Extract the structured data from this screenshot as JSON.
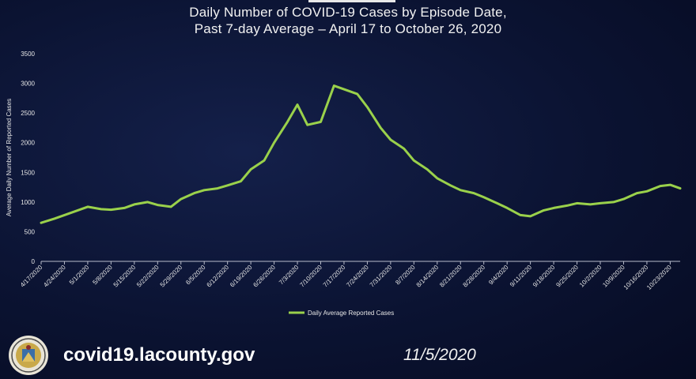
{
  "chart_data": {
    "type": "line",
    "title": "Daily Number of COVID-19 Cases by Episode Date,",
    "subtitle": "Past 7-day Average – April 17 to October 26, 2020",
    "ylabel": "Average Daily Number of Reported Cases",
    "xlabel": "",
    "ylim": [
      0,
      3500
    ],
    "yticks": [
      "0",
      "500",
      "1000",
      "1500",
      "2000",
      "2500",
      "3000",
      "3500"
    ],
    "grid": false,
    "legend": "bottom",
    "xticks": [
      "4/17/2020",
      "4/24/2020",
      "5/1/2020",
      "5/8/2020",
      "5/15/2020",
      "5/22/2020",
      "5/29/2020",
      "6/5/2020",
      "6/12/2020",
      "6/19/2020",
      "6/26/2020",
      "7/3/2020",
      "7/10/2020",
      "7/17/2020",
      "7/24/2020",
      "7/31/2020",
      "8/7/2020",
      "8/14/2020",
      "8/21/2020",
      "8/28/2020",
      "9/4/2020",
      "9/11/2020",
      "9/18/2020",
      "9/25/2020",
      "10/2/2020",
      "10/9/2020",
      "10/16/2020",
      "10/23/2020"
    ],
    "x": [
      "4/17/2020",
      "4/21/2020",
      "4/24/2020",
      "4/28/2020",
      "5/1/2020",
      "5/5/2020",
      "5/8/2020",
      "5/12/2020",
      "5/15/2020",
      "5/19/2020",
      "5/22/2020",
      "5/26/2020",
      "5/29/2020",
      "6/2/2020",
      "6/5/2020",
      "6/9/2020",
      "6/12/2020",
      "6/16/2020",
      "6/19/2020",
      "6/23/2020",
      "6/26/2020",
      "6/30/2020",
      "7/3/2020",
      "7/6/2020",
      "7/10/2020",
      "7/14/2020",
      "7/17/2020",
      "7/21/2020",
      "7/24/2020",
      "7/28/2020",
      "7/31/2020",
      "8/4/2020",
      "8/7/2020",
      "8/11/2020",
      "8/14/2020",
      "8/18/2020",
      "8/21/2020",
      "8/25/2020",
      "8/28/2020",
      "9/1/2020",
      "9/4/2020",
      "9/8/2020",
      "9/11/2020",
      "9/15/2020",
      "9/18/2020",
      "9/22/2020",
      "9/25/2020",
      "9/29/2020",
      "10/2/2020",
      "10/6/2020",
      "10/9/2020",
      "10/13/2020",
      "10/16/2020",
      "10/20/2020",
      "10/23/2020",
      "10/26/2020"
    ],
    "series": [
      {
        "name": "Daily Average Reported Cases",
        "color": "#9ad14b",
        "values": [
          650,
          720,
          780,
          860,
          920,
          880,
          870,
          900,
          960,
          1000,
          950,
          920,
          1050,
          1150,
          1200,
          1230,
          1280,
          1350,
          1550,
          1700,
          2000,
          2350,
          2640,
          2300,
          2350,
          2960,
          2900,
          2820,
          2600,
          2250,
          2050,
          1900,
          1700,
          1550,
          1400,
          1280,
          1200,
          1150,
          1080,
          980,
          900,
          780,
          760,
          860,
          900,
          940,
          980,
          960,
          980,
          1000,
          1050,
          1150,
          1180,
          1270,
          1290,
          1230
        ]
      }
    ]
  },
  "footer": {
    "url": "covid19.lacounty.gov",
    "date": "11/5/2020"
  }
}
